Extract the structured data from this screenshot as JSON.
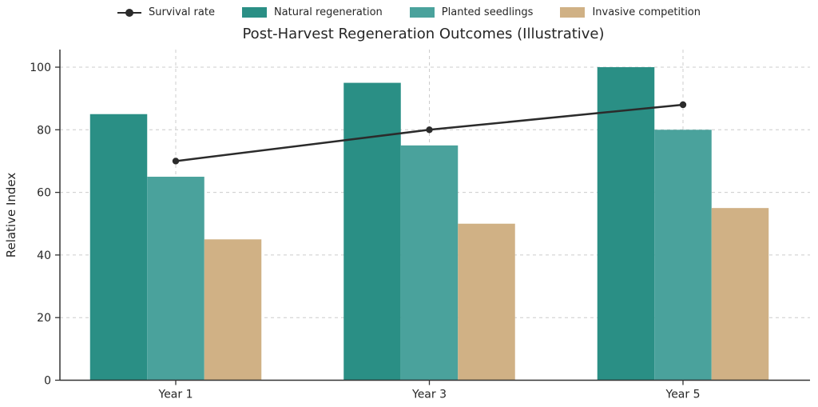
{
  "title": "Post-Harvest Regeneration Outcomes (Illustrative)",
  "legend": [
    {
      "label": "Survival rate",
      "marker": "line-dot",
      "color": "#2b2b2b"
    },
    {
      "label": "Natural regeneration",
      "marker": "swatch",
      "color": "#2a8f85"
    },
    {
      "label": "Planted seedlings",
      "marker": "swatch",
      "color": "#4aa29c"
    },
    {
      "label": "Invasive competition",
      "marker": "swatch",
      "color": "#d0b185"
    }
  ],
  "chart_data": {
    "type": "bar",
    "title": "Post-Harvest Regeneration Outcomes (Illustrative)",
    "categories": [
      "Year 1",
      "Year 3",
      "Year 5"
    ],
    "series": [
      {
        "name": "Natural regeneration",
        "type": "bar",
        "color": "#2a8f85",
        "values": [
          85,
          95,
          100
        ]
      },
      {
        "name": "Planted seedlings",
        "type": "bar",
        "color": "#4aa29c",
        "values": [
          65,
          75,
          80
        ]
      },
      {
        "name": "Invasive competition",
        "type": "bar",
        "color": "#d0b185",
        "values": [
          45,
          50,
          55
        ]
      },
      {
        "name": "Survival rate",
        "type": "line",
        "color": "#2b2b2b",
        "values": [
          70,
          80,
          88
        ]
      }
    ],
    "xlabel": "",
    "ylabel": "Relative Index",
    "ylim": [
      0,
      105.5
    ],
    "yticks": [
      0,
      20,
      40,
      60,
      80,
      100
    ],
    "grid": true,
    "grid_style": "dashed",
    "legend_position": "top-center",
    "colors": {
      "grid": "#cccccc",
      "axis": "#333333",
      "text": "#262626"
    }
  }
}
